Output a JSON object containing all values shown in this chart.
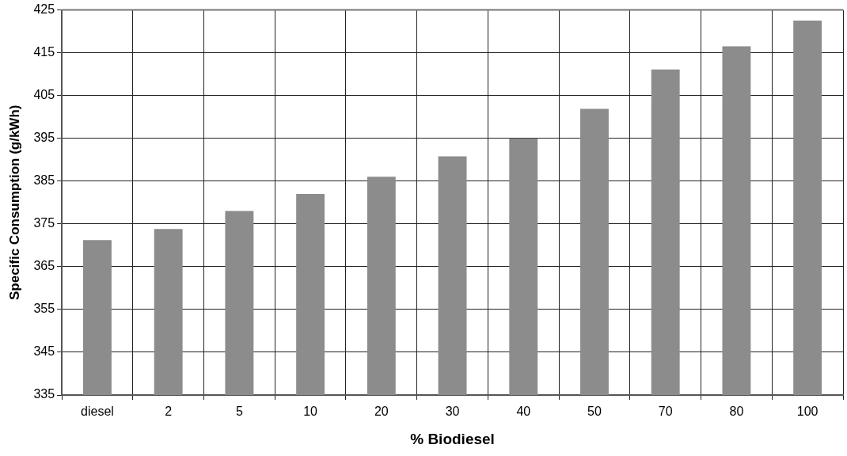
{
  "chart_data": {
    "type": "bar",
    "xlabel": "% Biodiesel",
    "ylabel": "Specific Consumption (g/kWh)",
    "categories": [
      "diesel",
      "2",
      "5",
      "10",
      "20",
      "30",
      "40",
      "50",
      "70",
      "80",
      "100"
    ],
    "values": [
      371.2,
      373.8,
      378.0,
      382.0,
      386.0,
      390.8,
      395.0,
      401.9,
      411.1,
      416.5,
      422.5
    ],
    "color": "#8c8c8c",
    "ylim": [
      335,
      425
    ],
    "yticks": [
      335,
      345,
      355,
      365,
      375,
      385,
      395,
      405,
      415,
      425
    ],
    "grid": true
  }
}
